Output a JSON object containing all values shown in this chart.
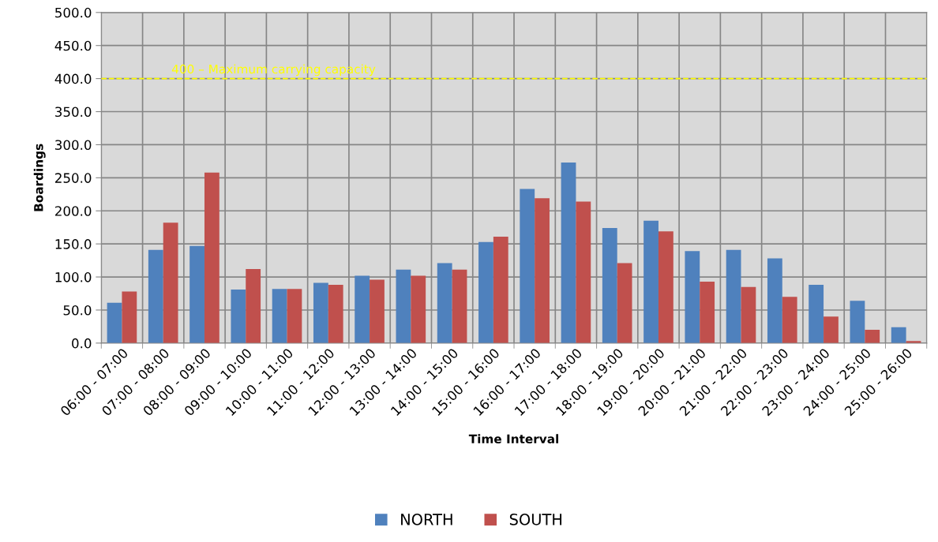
{
  "chart_data": {
    "type": "bar",
    "xlabel": "Time Interval",
    "ylabel": "Boardings",
    "categories": [
      "06:00 - 07:00",
      "07:00 - 08:00",
      "08:00 - 09:00",
      "09:00 - 10:00",
      "10:00 - 11:00",
      "11:00 - 12:00",
      "12:00 - 13:00",
      "13:00 - 14:00",
      "14:00 - 15:00",
      "15:00 - 16:00",
      "16:00 - 17:00",
      "17:00 - 18:00",
      "18:00 - 19:00",
      "19:00 - 20:00",
      "20:00 - 21:00",
      "21:00 - 22:00",
      "22:00 - 23:00",
      "23:00 - 24:00",
      "24:00 - 25:00",
      "25:00 - 26:00"
    ],
    "series": [
      {
        "name": "NORTH",
        "color": "#4f81bd",
        "values": [
          61,
          141,
          147,
          81,
          82,
          91,
          102,
          111,
          121,
          153,
          233,
          273,
          174,
          185,
          139,
          141,
          128,
          88,
          64,
          24
        ]
      },
      {
        "name": "SOUTH",
        "color": "#c0504d",
        "values": [
          78,
          182,
          258,
          112,
          82,
          88,
          96,
          102,
          111,
          161,
          219,
          214,
          121,
          169,
          93,
          85,
          70,
          40,
          20,
          3
        ]
      }
    ],
    "ylim": [
      0,
      500
    ],
    "yticks": [
      {
        "value": 0,
        "label": "0.0"
      },
      {
        "value": 50,
        "label": "50.0"
      },
      {
        "value": 100,
        "label": "100.0"
      },
      {
        "value": 150,
        "label": "150.0"
      },
      {
        "value": 200,
        "label": "200.0"
      },
      {
        "value": 250,
        "label": "250.0"
      },
      {
        "value": 300,
        "label": "300.0"
      },
      {
        "value": 350,
        "label": "350.0"
      },
      {
        "value": 400,
        "label": "400.0"
      },
      {
        "value": 450,
        "label": "450.0"
      },
      {
        "value": 500,
        "label": "500.0"
      }
    ],
    "ref_lines": [
      {
        "axis": "y",
        "value": 400,
        "label": "400 – Maximum carrying capacity",
        "color": "#ffff00",
        "line_style": "dashed"
      }
    ],
    "grid": true,
    "legend": "bottom"
  }
}
